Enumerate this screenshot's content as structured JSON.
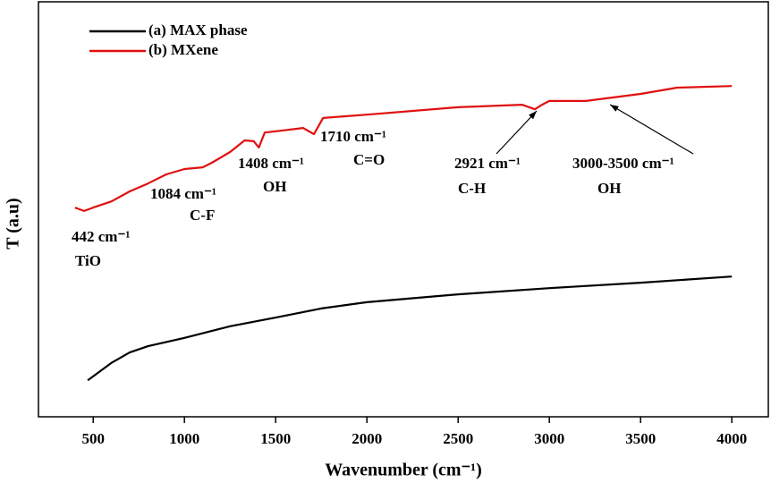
{
  "chart_data": {
    "type": "line",
    "xlabel": "Wavenumber (cm⁻¹)",
    "ylabel": "T (a.u)",
    "xlim": [
      200,
      4200
    ],
    "xticks": [
      500,
      1000,
      1500,
      2000,
      2500,
      3000,
      3500,
      4000
    ],
    "ylim": [
      0,
      100
    ],
    "series": [
      {
        "name": "(a) MAX phase",
        "color": "#000000",
        "x": [
          470,
          600,
          700,
          800,
          1000,
          1250,
          1500,
          1750,
          2000,
          2500,
          3000,
          3500,
          4000
        ],
        "values": [
          8.8,
          13,
          15.5,
          17,
          19,
          21.8,
          23.9,
          26.1,
          27.6,
          29.5,
          31,
          32.3,
          33.8
        ]
      },
      {
        "name": "(b) MXene",
        "color": "#e01010",
        "x": [
          400,
          450,
          500,
          600,
          700,
          800,
          900,
          1000,
          1100,
          1150,
          1250,
          1330,
          1380,
          1408,
          1440,
          1500,
          1650,
          1710,
          1760,
          2000,
          2500,
          2850,
          2921,
          2960,
          3000,
          3200,
          3500,
          3700,
          4000
        ],
        "values": [
          50.4,
          49.6,
          50.4,
          51.9,
          54.3,
          56.2,
          58.4,
          59.7,
          60.1,
          61.2,
          63.8,
          66.6,
          66.4,
          64.9,
          68.5,
          68.8,
          69.6,
          68.1,
          72,
          72.8,
          74.6,
          75.2,
          74.1,
          75.2,
          76.1,
          76.1,
          77.8,
          79.3,
          79.7
        ]
      }
    ],
    "annotations": [
      "442 cm⁻¹",
      "TiO",
      "1084 cm⁻¹",
      "C-F",
      "1408 cm⁻¹",
      "OH",
      "1710 cm⁻¹",
      "C=O",
      "2921 cm⁻¹",
      "C-H",
      "3000-3500 cm⁻¹",
      "OH"
    ],
    "legend": "upper left"
  }
}
